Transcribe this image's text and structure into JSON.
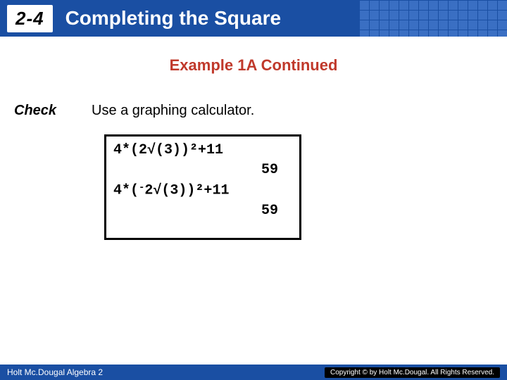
{
  "header": {
    "section_number": "2-4",
    "title": "Completing the Square",
    "bar_color": "#1a4fa3",
    "grid_color": "#3a6fc3"
  },
  "example": {
    "heading": "Example 1A Continued",
    "heading_color": "#c0392b"
  },
  "body": {
    "check_label": "Check",
    "check_text": "Use a graphing calculator."
  },
  "calculator": {
    "line1": "4*(2√(3))²+11",
    "result1": "59",
    "line2_prefix": "4*(",
    "line2_neg": "-",
    "line2_suffix": "2√(3))²+11",
    "result2": "59",
    "border_color": "#000000",
    "font": "Courier New"
  },
  "footer": {
    "left": "Holt Mc.Dougal Algebra 2",
    "right": "Copyright © by Holt Mc.Dougal. All Rights Reserved.",
    "bar_color": "#1a4fa3"
  }
}
